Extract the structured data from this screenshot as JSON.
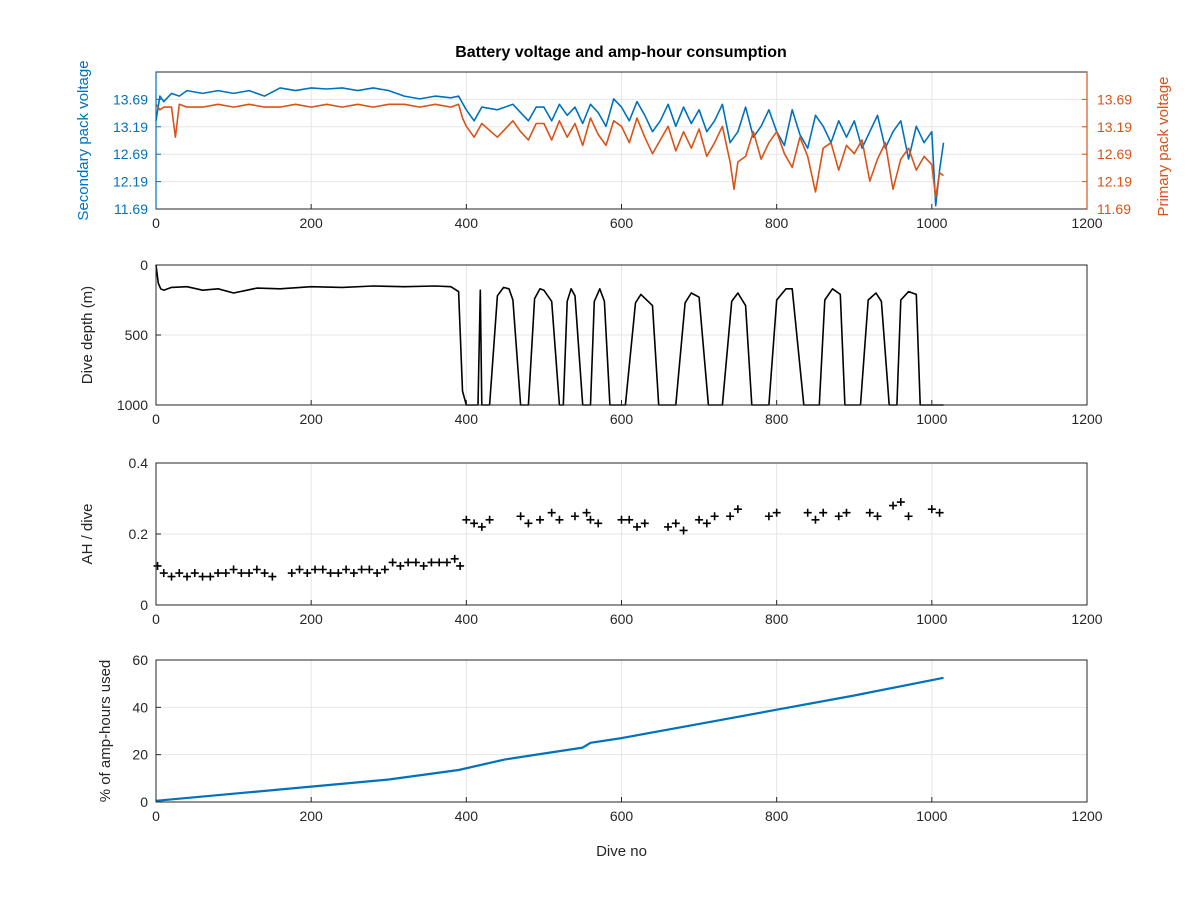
{
  "figure": {
    "title": "Battery voltage and amp-hour consumption",
    "colors": {
      "secondary": "#0072BD",
      "primary": "#D95319",
      "black": "#000000",
      "grid": "#e6e6e6"
    }
  },
  "chart_data": [
    {
      "type": "line",
      "name": "voltage",
      "xlim": [
        0,
        1200
      ],
      "xticks": [
        "0",
        "200",
        "400",
        "600",
        "800",
        "1000",
        "1200"
      ],
      "ylabel": "Secondary pack voltage",
      "ylabel_right": "Primary pack voltage",
      "ylim": [
        11.69,
        14.19
      ],
      "yticks": [
        "11.69",
        "12.19",
        "12.69",
        "13.19",
        "13.69"
      ],
      "series": [
        {
          "axis": "left",
          "color": "#0072BD",
          "x": [
            0,
            5,
            10,
            20,
            30,
            40,
            60,
            80,
            100,
            120,
            140,
            160,
            180,
            200,
            220,
            240,
            260,
            280,
            300,
            320,
            340,
            360,
            380,
            390,
            400,
            410,
            420,
            440,
            460,
            470,
            480,
            490,
            500,
            510,
            520,
            530,
            540,
            550,
            560,
            570,
            580,
            590,
            600,
            610,
            620,
            630,
            640,
            650,
            660,
            670,
            680,
            690,
            700,
            710,
            720,
            730,
            740,
            750,
            760,
            770,
            780,
            790,
            800,
            810,
            820,
            830,
            840,
            850,
            860,
            870,
            880,
            890,
            900,
            910,
            920,
            930,
            940,
            950,
            960,
            970,
            980,
            990,
            1000,
            1005,
            1010,
            1015
          ],
          "y": [
            13.3,
            13.75,
            13.65,
            13.8,
            13.75,
            13.85,
            13.8,
            13.85,
            13.8,
            13.85,
            13.75,
            13.9,
            13.85,
            13.9,
            13.88,
            13.9,
            13.85,
            13.9,
            13.85,
            13.75,
            13.7,
            13.75,
            13.72,
            13.75,
            13.5,
            13.3,
            13.55,
            13.5,
            13.6,
            13.45,
            13.3,
            13.55,
            13.55,
            13.3,
            13.6,
            13.4,
            13.55,
            13.25,
            13.6,
            13.45,
            13.2,
            13.7,
            13.55,
            13.3,
            13.65,
            13.4,
            13.1,
            13.3,
            13.6,
            13.2,
            13.55,
            13.25,
            13.5,
            13.1,
            13.3,
            13.6,
            12.9,
            13.1,
            13.55,
            13.0,
            13.2,
            13.5,
            13.1,
            12.85,
            13.5,
            13.05,
            12.8,
            13.4,
            13.2,
            12.9,
            13.3,
            13.0,
            13.3,
            12.8,
            13.1,
            13.4,
            12.8,
            13.1,
            13.3,
            12.6,
            13.2,
            12.9,
            13.1,
            11.75,
            12.4,
            12.9
          ]
        },
        {
          "axis": "right",
          "color": "#D95319",
          "x": [
            0,
            5,
            10,
            20,
            25,
            30,
            40,
            60,
            80,
            100,
            120,
            140,
            160,
            180,
            200,
            220,
            240,
            260,
            280,
            300,
            320,
            340,
            360,
            380,
            390,
            395,
            400,
            410,
            420,
            440,
            460,
            470,
            480,
            490,
            500,
            510,
            520,
            530,
            540,
            550,
            560,
            570,
            580,
            590,
            600,
            610,
            620,
            630,
            640,
            650,
            660,
            670,
            680,
            690,
            700,
            710,
            720,
            730,
            740,
            745,
            750,
            760,
            770,
            780,
            790,
            800,
            810,
            820,
            830,
            840,
            850,
            860,
            870,
            880,
            890,
            900,
            910,
            920,
            930,
            940,
            950,
            960,
            970,
            980,
            990,
            1000,
            1005,
            1010,
            1015
          ],
          "y": [
            13.6,
            13.5,
            13.55,
            13.55,
            13.0,
            13.6,
            13.55,
            13.55,
            13.6,
            13.55,
            13.6,
            13.55,
            13.55,
            13.6,
            13.55,
            13.6,
            13.55,
            13.6,
            13.55,
            13.6,
            13.6,
            13.55,
            13.6,
            13.55,
            13.6,
            13.35,
            13.2,
            13.0,
            13.25,
            13.0,
            13.3,
            13.1,
            12.95,
            13.25,
            13.25,
            12.95,
            13.3,
            13.0,
            13.25,
            12.85,
            13.35,
            13.05,
            12.85,
            13.3,
            13.2,
            12.9,
            13.35,
            13.0,
            12.7,
            12.95,
            13.2,
            12.75,
            13.1,
            12.8,
            13.15,
            12.65,
            12.9,
            13.2,
            12.55,
            12.05,
            12.55,
            12.65,
            13.1,
            12.6,
            12.9,
            13.1,
            12.7,
            12.45,
            13.0,
            12.65,
            12.0,
            12.8,
            12.9,
            12.4,
            12.85,
            12.7,
            12.95,
            12.2,
            12.6,
            12.9,
            12.05,
            12.6,
            12.8,
            12.4,
            12.65,
            12.5,
            11.9,
            12.35,
            12.3
          ]
        }
      ]
    },
    {
      "type": "line",
      "name": "depth",
      "xlim": [
        0,
        1200
      ],
      "xticks": [
        "0",
        "200",
        "400",
        "600",
        "800",
        "1000",
        "1200"
      ],
      "ylabel": "Dive depth (m)",
      "ylim": [
        0,
        1000
      ],
      "yreverse": true,
      "yticks": [
        "0",
        "500",
        "1000"
      ],
      "series": [
        {
          "color": "#000000",
          "x": [
            0,
            3,
            6,
            10,
            20,
            40,
            60,
            80,
            100,
            130,
            160,
            200,
            240,
            280,
            320,
            360,
            380,
            390,
            395,
            400,
            410,
            415,
            418,
            420,
            422,
            430,
            440,
            448,
            455,
            460,
            470,
            480,
            488,
            495,
            500,
            510,
            520,
            525,
            530,
            535,
            540,
            550,
            560,
            565,
            572,
            578,
            585,
            595,
            605,
            618,
            625,
            640,
            648,
            655,
            670,
            682,
            690,
            700,
            712,
            720,
            730,
            742,
            750,
            760,
            768,
            778,
            790,
            800,
            812,
            820,
            835,
            845,
            855,
            862,
            872,
            882,
            888,
            895,
            908,
            918,
            928,
            935,
            945,
            950,
            955,
            960,
            970,
            980,
            985,
            990,
            995,
            1000,
            1015
          ],
          "y": [
            0,
            130,
            170,
            180,
            160,
            155,
            180,
            170,
            200,
            165,
            170,
            155,
            160,
            150,
            155,
            150,
            155,
            190,
            900,
            1000,
            1000,
            1000,
            180,
            1000,
            1000,
            1000,
            220,
            160,
            170,
            250,
            1000,
            1000,
            240,
            170,
            180,
            260,
            1000,
            1000,
            260,
            170,
            220,
            1000,
            1000,
            260,
            170,
            260,
            1000,
            1000,
            1000,
            270,
            210,
            290,
            1000,
            1000,
            1000,
            270,
            200,
            230,
            1000,
            1000,
            1000,
            260,
            200,
            290,
            1000,
            1000,
            1000,
            250,
            170,
            170,
            1000,
            1000,
            1000,
            250,
            170,
            210,
            1000,
            1000,
            1000,
            250,
            200,
            260,
            1000,
            1000,
            1000,
            250,
            190,
            210,
            1000,
            1000,
            1000,
            1000,
            1000
          ]
        }
      ]
    },
    {
      "type": "scatter",
      "name": "ah-per-dive",
      "xlim": [
        0,
        1200
      ],
      "xticks": [
        "0",
        "200",
        "400",
        "600",
        "800",
        "1000",
        "1200"
      ],
      "ylabel": "AH / dive",
      "ylim": [
        0,
        0.4
      ],
      "yticks": [
        "0",
        "0.2",
        "0.4"
      ],
      "series": [
        {
          "color": "#000000",
          "x": [
            2,
            10,
            20,
            30,
            40,
            50,
            60,
            70,
            80,
            90,
            100,
            110,
            120,
            130,
            140,
            150,
            175,
            185,
            195,
            205,
            215,
            225,
            235,
            245,
            255,
            265,
            275,
            285,
            295,
            305,
            315,
            325,
            335,
            345,
            355,
            365,
            375,
            385,
            392,
            400,
            410,
            420,
            430,
            470,
            480,
            495,
            510,
            520,
            540,
            555,
            560,
            570,
            600,
            610,
            620,
            630,
            660,
            670,
            680,
            700,
            710,
            720,
            740,
            750,
            790,
            800,
            840,
            850,
            860,
            880,
            890,
            920,
            930,
            950,
            960,
            970,
            1000,
            1010
          ],
          "y": [
            0.11,
            0.09,
            0.08,
            0.09,
            0.08,
            0.09,
            0.08,
            0.08,
            0.09,
            0.09,
            0.1,
            0.09,
            0.09,
            0.1,
            0.09,
            0.08,
            0.09,
            0.1,
            0.09,
            0.1,
            0.1,
            0.09,
            0.09,
            0.1,
            0.09,
            0.1,
            0.1,
            0.09,
            0.1,
            0.12,
            0.11,
            0.12,
            0.12,
            0.11,
            0.12,
            0.12,
            0.12,
            0.13,
            0.11,
            0.24,
            0.23,
            0.22,
            0.24,
            0.25,
            0.23,
            0.24,
            0.26,
            0.24,
            0.25,
            0.26,
            0.24,
            0.23,
            0.24,
            0.24,
            0.22,
            0.23,
            0.22,
            0.23,
            0.21,
            0.24,
            0.23,
            0.25,
            0.25,
            0.27,
            0.25,
            0.26,
            0.26,
            0.24,
            0.26,
            0.25,
            0.26,
            0.26,
            0.25,
            0.28,
            0.29,
            0.25,
            0.27,
            0.26
          ]
        }
      ]
    },
    {
      "type": "line",
      "name": "percent-used",
      "xlim": [
        0,
        1200
      ],
      "xticks": [
        "0",
        "200",
        "400",
        "600",
        "800",
        "1000",
        "1200"
      ],
      "xlabel": "Dive no",
      "ylabel": "% of amp-hours used",
      "ylim": [
        0,
        60
      ],
      "yticks": [
        "0",
        "20",
        "40",
        "60"
      ],
      "series": [
        {
          "color": "#0072BD",
          "x": [
            0,
            100,
            200,
            300,
            390,
            450,
            500,
            550,
            560,
            600,
            700,
            800,
            900,
            1015
          ],
          "y": [
            0.5,
            3.5,
            6.5,
            9.5,
            13.5,
            18,
            20.5,
            23,
            25,
            27,
            33,
            39,
            45,
            52.5
          ]
        }
      ]
    }
  ]
}
